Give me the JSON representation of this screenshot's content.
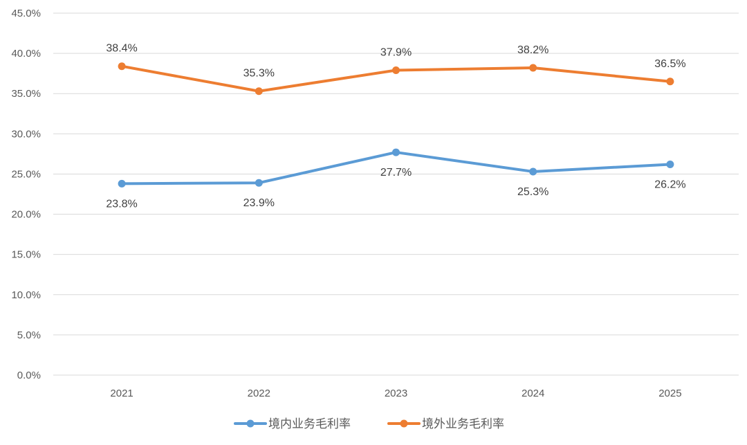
{
  "chart_data": {
    "type": "line",
    "categories": [
      "2021",
      "2022",
      "2023",
      "2024",
      "2025"
    ],
    "ylim": [
      0,
      45
    ],
    "y_ticks": [
      "0.0%",
      "5.0%",
      "10.0%",
      "15.0%",
      "20.0%",
      "25.0%",
      "30.0%",
      "35.0%",
      "40.0%",
      "45.0%"
    ],
    "grid": true,
    "legend_position": "bottom",
    "series": [
      {
        "name": "境内业务毛利率",
        "color": "#5b9bd5",
        "values": [
          23.8,
          23.9,
          27.7,
          25.3,
          26.2
        ],
        "labels": [
          "23.8%",
          "23.9%",
          "27.7%",
          "25.3%",
          "26.2%"
        ],
        "label_position": "below"
      },
      {
        "name": "境外业务毛利率",
        "color": "#ed7d31",
        "values": [
          38.4,
          35.3,
          37.9,
          38.2,
          36.5
        ],
        "labels": [
          "38.4%",
          "35.3%",
          "37.9%",
          "38.2%",
          "36.5%"
        ],
        "label_position": "above"
      }
    ]
  }
}
